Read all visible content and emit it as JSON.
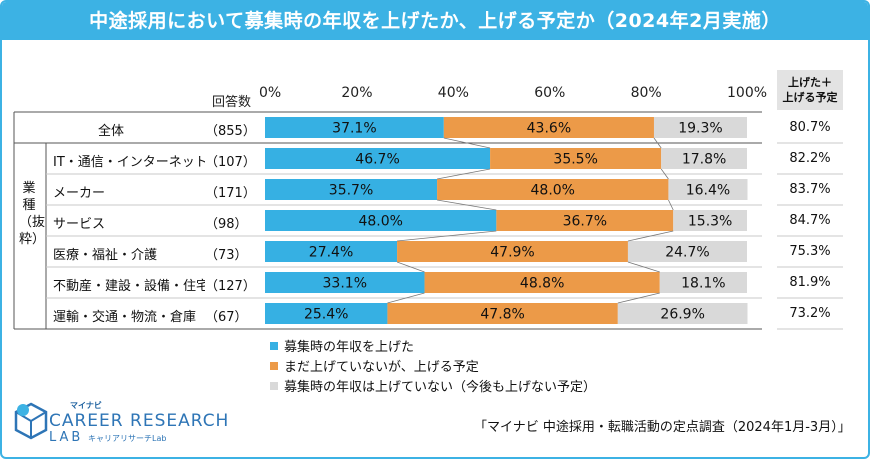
{
  "title": "中途採用において募集時の年収を上げたか、上げる予定か（2024年2月実施）",
  "header": {
    "count_label": "回答数",
    "rate_label_line1": "上げた＋",
    "rate_label_line2": "上げる予定"
  },
  "group_label": "業種（抜粋）",
  "chart_data": {
    "type": "bar",
    "orientation": "horizontal",
    "stacked": true,
    "xlim": [
      0,
      100
    ],
    "x_ticks": [
      "0%",
      "20%",
      "40%",
      "60%",
      "80%",
      "100%"
    ],
    "categories": [
      "全体",
      "IT・通信・インターネット",
      "メーカー",
      "サービス",
      "医療・福祉・介護",
      "不動産・建設・設備・住宅関連",
      "運輸・交通・物流・倉庫"
    ],
    "counts": [
      "（855）",
      "（107）",
      "（171）",
      "（98）",
      "（73）",
      "（127）",
      "（67）"
    ],
    "series": [
      {
        "name": "募集時の年収を上げた",
        "color": "#36b0e3",
        "values": [
          37.1,
          46.7,
          35.7,
          48.0,
          27.4,
          33.1,
          25.4
        ],
        "labels": [
          "37.1%",
          "46.7%",
          "35.7%",
          "48.0%",
          "27.4%",
          "33.1%",
          "25.4%"
        ]
      },
      {
        "name": "まだ上げていないが、上げる予定",
        "color": "#ec9a48",
        "values": [
          43.6,
          35.5,
          48.0,
          36.7,
          47.9,
          48.8,
          47.8
        ],
        "labels": [
          "43.6%",
          "35.5%",
          "48.0%",
          "36.7%",
          "47.9%",
          "48.8%",
          "47.8%"
        ]
      },
      {
        "name": "募集時の年収は上げていない（今後も上げない予定）",
        "color": "#d9d9d9",
        "values": [
          19.3,
          17.8,
          16.4,
          15.3,
          24.7,
          18.1,
          26.9
        ],
        "labels": [
          "19.3%",
          "17.8%",
          "16.4%",
          "15.3%",
          "24.7%",
          "18.1%",
          "26.9%"
        ]
      }
    ],
    "raised_plus_planned": [
      "80.7%",
      "82.2%",
      "83.7%",
      "84.7%",
      "75.3%",
      "81.9%",
      "73.2%"
    ]
  },
  "source": "「マイナビ 中途採用・転職活動の定点調査（2024年1月-3月）」",
  "logo": {
    "brand": "マイナビ",
    "name_line1": "CAREER RESEARCH",
    "name_line2": "LAB",
    "sub": "キャリアリサーチLab"
  }
}
